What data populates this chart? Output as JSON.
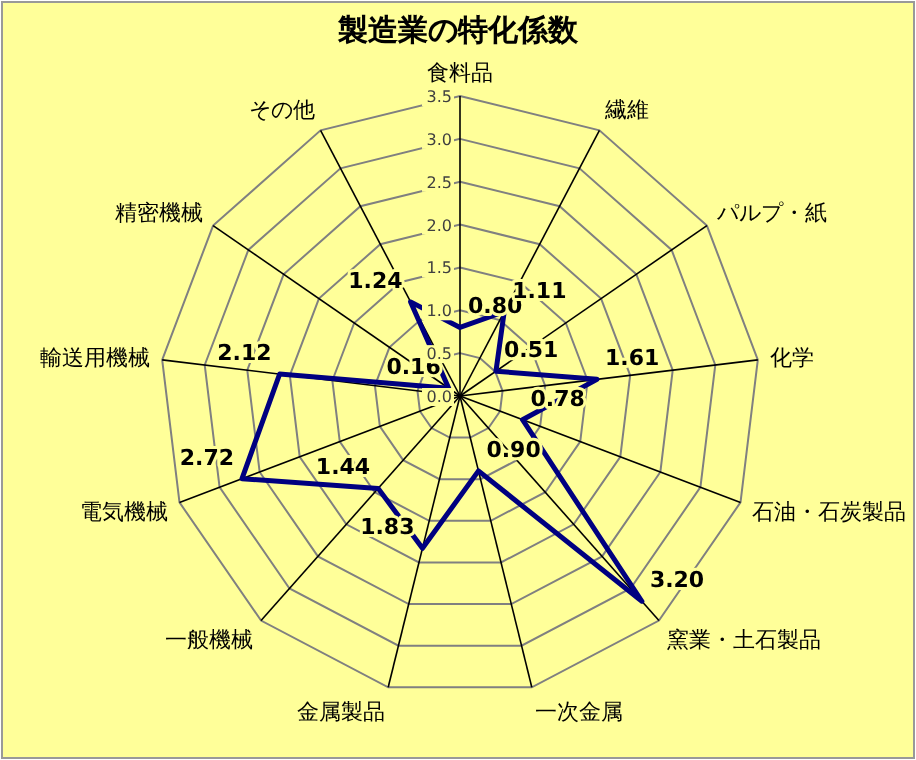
{
  "chart_data": {
    "type": "radar",
    "title": "製造業の特化係数",
    "categories": [
      "食料品",
      "繊維",
      "パルプ・紙",
      "化学",
      "石油・石炭製品",
      "窯業・土石製品",
      "一次金属",
      "金属製品",
      "一般機械",
      "電気機械",
      "輸送用機械",
      "精密機械",
      "その他"
    ],
    "series": [
      {
        "color": "#000080",
        "values": [
          0.8,
          1.11,
          0.51,
          1.61,
          0.78,
          3.2,
          0.9,
          1.83,
          1.44,
          2.72,
          2.12,
          0.16,
          1.24
        ],
        "value_labels": [
          "0.80",
          "1.11",
          "0.51",
          "1.61",
          "0.78",
          "3.20",
          "0.90",
          "1.83",
          "1.44",
          "2.72",
          "2.12",
          "0.16",
          "1.24"
        ]
      }
    ],
    "ylim": [
      0,
      3.5
    ],
    "yticks": [
      {
        "value": 0,
        "label": "0.0"
      },
      {
        "value": 0.5,
        "label": "0.5"
      },
      {
        "value": 1,
        "label": "1.0"
      },
      {
        "value": 1.5,
        "label": "1.5"
      },
      {
        "value": 2,
        "label": "2.0"
      },
      {
        "value": 2.5,
        "label": "2.5"
      },
      {
        "value": 3,
        "label": "3.0"
      },
      {
        "value": 3.5,
        "label": "3.5"
      }
    ],
    "grid": true,
    "marker": "none",
    "line_style": "solid"
  }
}
